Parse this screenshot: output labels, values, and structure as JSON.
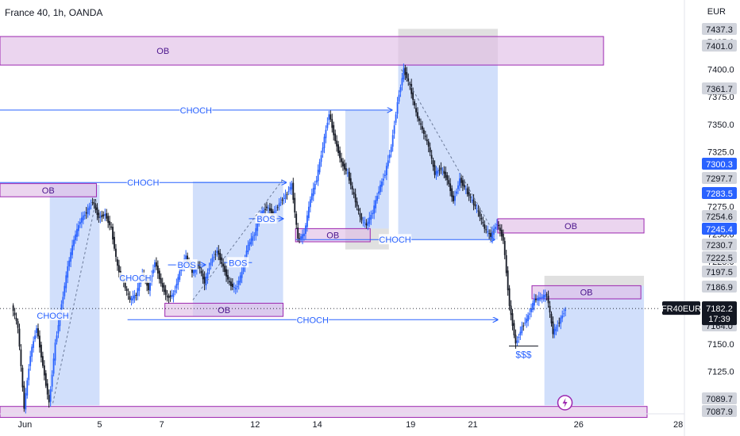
{
  "header": {
    "title": "France 40, 1h, OANDA",
    "currency": "EUR"
  },
  "colors": {
    "up": "#2962ff",
    "down": "#131722",
    "zone_fill": "#e1bee7",
    "zone_stroke": "#9c27b0",
    "box_blue": "#5b8def",
    "box_grey": "#9e9e9e",
    "line": "#2962ff",
    "ticker_bg": "#131722"
  },
  "chart_data": {
    "type": "candlestick",
    "title": "France 40, 1h, OANDA",
    "y_unit": "EUR",
    "ylim": [
      7080,
      7445
    ],
    "y_ticks": [
      7100,
      7125,
      7150,
      7175,
      7200,
      7225,
      7250,
      7275,
      7300,
      7325,
      7350,
      7375,
      7400,
      7425
    ],
    "x_ticks": [
      {
        "i": 2,
        "label": "Jun"
      },
      {
        "i": 14,
        "label": "5"
      },
      {
        "i": 24,
        "label": "7"
      },
      {
        "i": 39,
        "label": "12"
      },
      {
        "i": 49,
        "label": "14"
      },
      {
        "i": 64,
        "label": "19"
      },
      {
        "i": 74,
        "label": "21"
      },
      {
        "i": 91,
        "label": "26"
      },
      {
        "i": 107,
        "label": "28"
      }
    ],
    "x_index_range": [
      -2,
      108
    ],
    "price_path": [
      [
        0,
        7185
      ],
      [
        1,
        7165
      ],
      [
        2,
        7092
      ],
      [
        3,
        7140
      ],
      [
        4,
        7165
      ],
      [
        5,
        7130
      ],
      [
        6,
        7096
      ],
      [
        7,
        7150
      ],
      [
        8,
        7185
      ],
      [
        9,
        7220
      ],
      [
        10,
        7245
      ],
      [
        11,
        7262
      ],
      [
        12,
        7270
      ],
      [
        13,
        7280
      ],
      [
        14,
        7265
      ],
      [
        15,
        7268
      ],
      [
        16,
        7255
      ],
      [
        17,
        7220
      ],
      [
        18,
        7205
      ],
      [
        19,
        7190
      ],
      [
        20,
        7195
      ],
      [
        21,
        7215
      ],
      [
        22,
        7200
      ],
      [
        23,
        7225
      ],
      [
        24,
        7205
      ],
      [
        25,
        7192
      ],
      [
        26,
        7195
      ],
      [
        27,
        7215
      ],
      [
        28,
        7230
      ],
      [
        29,
        7215
      ],
      [
        30,
        7222
      ],
      [
        31,
        7205
      ],
      [
        32,
        7225
      ],
      [
        33,
        7235
      ],
      [
        34,
        7220
      ],
      [
        35,
        7205
      ],
      [
        36,
        7200
      ],
      [
        37,
        7215
      ],
      [
        38,
        7240
      ],
      [
        39,
        7250
      ],
      [
        40,
        7268
      ],
      [
        41,
        7275
      ],
      [
        42,
        7268
      ],
      [
        43,
        7278
      ],
      [
        44,
        7285
      ],
      [
        45,
        7295
      ],
      [
        46,
        7245
      ],
      [
        47,
        7250
      ],
      [
        48,
        7282
      ],
      [
        49,
        7300
      ],
      [
        50,
        7330
      ],
      [
        51,
        7360
      ],
      [
        52,
        7335
      ],
      [
        53,
        7315
      ],
      [
        54,
        7305
      ],
      [
        55,
        7285
      ],
      [
        56,
        7265
      ],
      [
        57,
        7258
      ],
      [
        58,
        7270
      ],
      [
        59,
        7290
      ],
      [
        60,
        7305
      ],
      [
        61,
        7330
      ],
      [
        62,
        7370
      ],
      [
        63,
        7400
      ],
      [
        64,
        7385
      ],
      [
        65,
        7360
      ],
      [
        66,
        7345
      ],
      [
        67,
        7330
      ],
      [
        68,
        7305
      ],
      [
        69,
        7310
      ],
      [
        70,
        7300
      ],
      [
        71,
        7280
      ],
      [
        72,
        7300
      ],
      [
        73,
        7290
      ],
      [
        74,
        7280
      ],
      [
        75,
        7270
      ],
      [
        76,
        7255
      ],
      [
        77,
        7248
      ],
      [
        78,
        7260
      ],
      [
        79,
        7245
      ],
      [
        80,
        7185
      ],
      [
        81,
        7150
      ],
      [
        82,
        7165
      ],
      [
        83,
        7175
      ],
      [
        84,
        7190
      ],
      [
        85,
        7192
      ],
      [
        86,
        7195
      ],
      [
        87,
        7160
      ],
      [
        88,
        7170
      ],
      [
        89,
        7182
      ]
    ],
    "zones": [
      {
        "label": "OB",
        "x0": -2,
        "x1": 95,
        "y0": 7404,
        "y1": 7430
      },
      {
        "label": "OB",
        "x0": -2,
        "x1": 13.5,
        "y0": 7284,
        "y1": 7296
      },
      {
        "label": "OB",
        "x0": 45.5,
        "x1": 57.5,
        "y0": 7243,
        "y1": 7255
      },
      {
        "label": "OB",
        "x0": 24.5,
        "x1": 43.5,
        "y0": 7175,
        "y1": 7187
      },
      {
        "label": "OB",
        "x0": 78,
        "x1": 101.5,
        "y0": 7251,
        "y1": 7264
      },
      {
        "label": "OB",
        "x0": 83.5,
        "x1": 101,
        "y0": 7191,
        "y1": 7203
      },
      {
        "label": "",
        "x0": -2,
        "x1": 102,
        "y0": 7083,
        "y1": 7093
      }
    ],
    "boxes": [
      {
        "color": "blue",
        "x0": 6,
        "x1": 14,
        "y0": 7094,
        "y1": 7295
      },
      {
        "color": "blue",
        "x0": 29,
        "x1": 43.5,
        "y0": 7175,
        "y1": 7298
      },
      {
        "color": "blue",
        "x0": 53.5,
        "x1": 60.5,
        "y0": 7255,
        "y1": 7363
      },
      {
        "color": "blue",
        "x0": 62,
        "x1": 78,
        "y0": 7245,
        "y1": 7405
      },
      {
        "color": "blue",
        "x0": 85.5,
        "x1": 101.5,
        "y0": 7094,
        "y1": 7203
      },
      {
        "color": "grey",
        "x0": 62,
        "x1": 78,
        "y0": 7405,
        "y1": 7437
      },
      {
        "color": "grey",
        "x0": 53.5,
        "x1": 60.5,
        "y0": 7236,
        "y1": 7255
      },
      {
        "color": "grey",
        "x0": 85.5,
        "x1": 101.5,
        "y0": 7203,
        "y1": 7212
      }
    ],
    "lines": [
      {
        "label": "CHOCH",
        "x0": -2,
        "x1": 61,
        "y": 7363,
        "arrow": true
      },
      {
        "label": "CHOCH",
        "x0": -2,
        "x1": 44,
        "y": 7297,
        "arrow": true
      },
      {
        "label": "CHOCH",
        "x0": 45.5,
        "x1": 77.5,
        "y": 7245,
        "arrow": true
      },
      {
        "label": "CHOCH",
        "x0": 18.5,
        "x1": 78,
        "y": 7172,
        "arrow": true
      },
      {
        "label": "BOS",
        "x0": 25,
        "x1": 31,
        "y": 7222,
        "arrow": true
      },
      {
        "label": "BOS",
        "x0": 34,
        "x1": 38.5,
        "y": 7224,
        "arrow": false
      },
      {
        "label": "BOS",
        "x0": 38,
        "x1": 43.5,
        "y": 7264,
        "arrow": true
      },
      {
        "label": "CHOCH",
        "x0": 17.5,
        "x1": 22,
        "y": 7210,
        "arrow": true
      },
      {
        "label": "CHOCH",
        "x0": 4,
        "x1": 9,
        "y": 7176,
        "arrow": true
      }
    ],
    "diagonals": [
      {
        "x0": 6.5,
        "y0": 7096,
        "x1": 13.5,
        "y1": 7282
      },
      {
        "x0": 29,
        "y0": 7190,
        "x1": 43.5,
        "y1": 7300
      },
      {
        "x0": 62.5,
        "y0": 7400,
        "x1": 77.5,
        "y1": 7250
      }
    ],
    "annotations": [
      {
        "label": "$$$",
        "x0": 79.8,
        "x1": 84.5,
        "y": 7148
      }
    ],
    "price_labels": [
      {
        "value": "7437.3",
        "style": "grey"
      },
      {
        "value": "7401.0",
        "style": "grey"
      },
      {
        "value": "7361.7",
        "style": "grey"
      },
      {
        "value": "7300.3",
        "style": "blue"
      },
      {
        "value": "7297.7",
        "style": "grey"
      },
      {
        "value": "7283.5",
        "style": "blue"
      },
      {
        "value": "7254.6",
        "style": "grey"
      },
      {
        "value": "7245.4",
        "style": "blue"
      },
      {
        "value": "7230.7",
        "style": "grey"
      },
      {
        "value": "7222.5",
        "style": "grey"
      },
      {
        "value": "7197.5",
        "style": "grey"
      },
      {
        "value": "7186.9",
        "style": "grey"
      },
      {
        "value": "7164.0",
        "style": "grey"
      },
      {
        "value": "7089.7",
        "style": "grey"
      },
      {
        "value": "7087.9",
        "style": "grey"
      }
    ],
    "last_price": {
      "symbol": "FR40EUR",
      "value": "7182.2",
      "countdown": "17:39"
    }
  }
}
